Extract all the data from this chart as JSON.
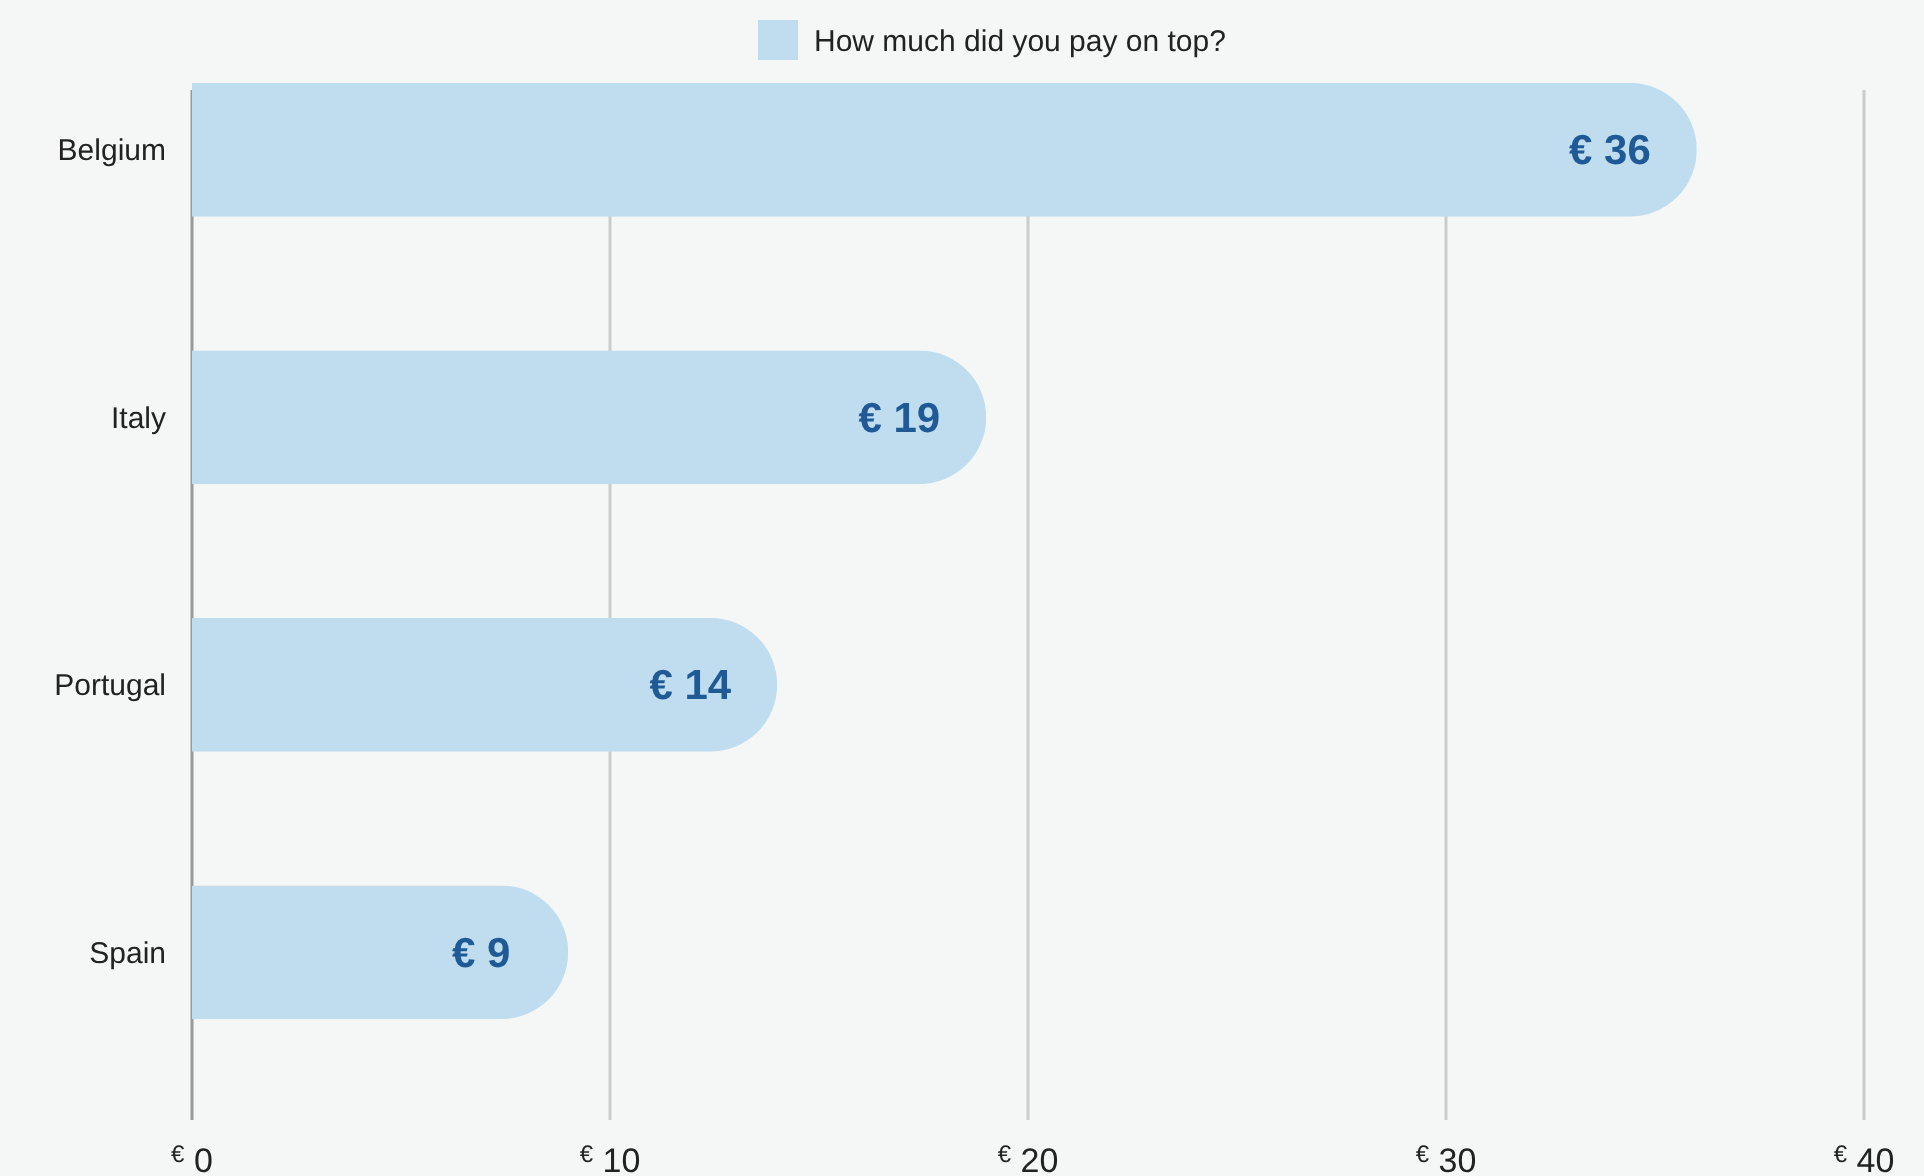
{
  "chart_data": {
    "type": "bar",
    "orientation": "horizontal",
    "categories": [
      "Belgium",
      "Italy",
      "Portugal",
      "Spain"
    ],
    "series": [
      {
        "name": "How much did you pay on top?",
        "color": "#c0ddef",
        "values": [
          36,
          19,
          14,
          9
        ],
        "value_labels": [
          "€ 36",
          "€ 19",
          "€ 14",
          "€ 9"
        ]
      }
    ],
    "xlim": [
      0,
      40
    ],
    "xticks": [
      {
        "value": 0,
        "label": "$^{€}$ 0"
      },
      {
        "value": 10,
        "label": "$^{€}$ 10"
      },
      {
        "value": 20,
        "label": "$^{€}$ 20"
      },
      {
        "value": 30,
        "label": "$^{€}$ 30"
      },
      {
        "value": 40,
        "label": "$^{€}$ 40"
      }
    ],
    "grid": "x",
    "legend": "top"
  }
}
